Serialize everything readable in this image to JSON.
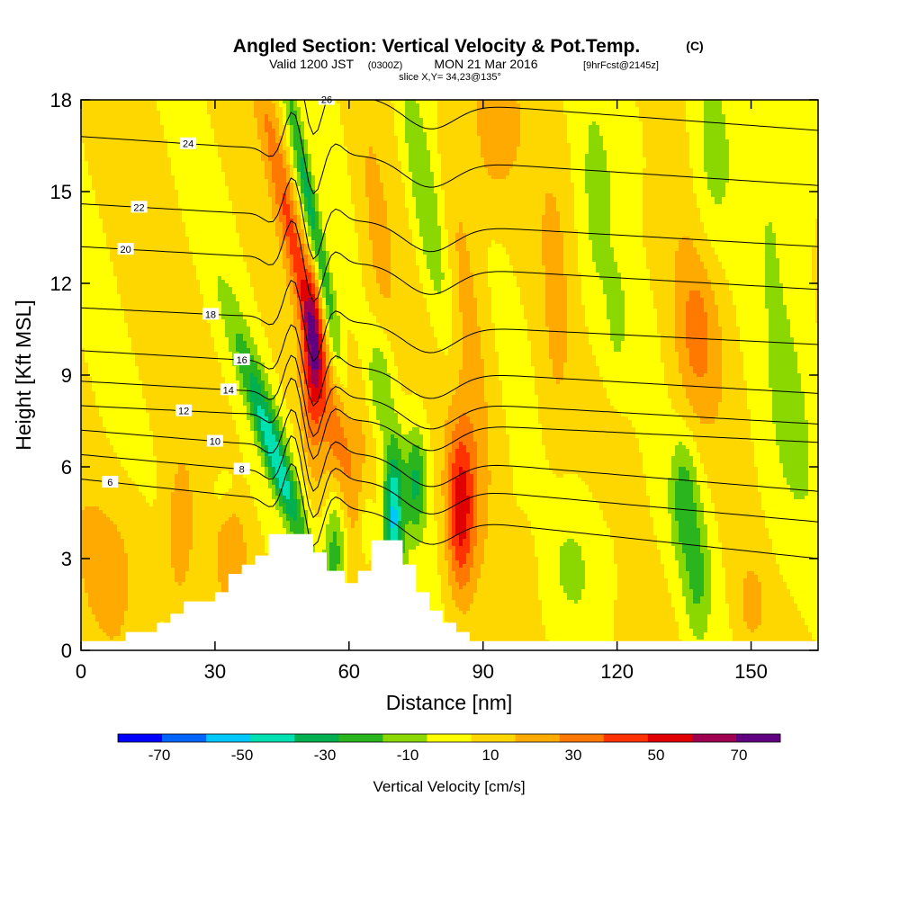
{
  "header": {
    "title": "Angled Section: Vertical Velocity & Pot.Temp.",
    "title_unit": "(C)",
    "subtitle_a": "Valid 1200 JST",
    "subtitle_b": "(0300Z)",
    "subtitle_c": "MON 21 Mar 2016",
    "subtitle_d": "[9hrFcst@2145z]",
    "slice": "slice X,Y= 34,23@135°"
  },
  "chart_data": {
    "type": "heatmap",
    "title": "Angled Section: Vertical Velocity & Pot.Temp.",
    "xlabel": "Distance [nm]",
    "ylabel": "Height [Kft MSL]",
    "xlim": [
      0,
      165
    ],
    "ylim": [
      0,
      18
    ],
    "x_ticks": [
      "0",
      "30",
      "60",
      "90",
      "120",
      "150"
    ],
    "x_tick_values": [
      0,
      30,
      60,
      90,
      120,
      150
    ],
    "y_ticks": [
      "0",
      "3",
      "6",
      "9",
      "12",
      "15",
      "18"
    ],
    "y_tick_values": [
      0,
      3,
      6,
      9,
      12,
      15,
      18
    ],
    "grid": false,
    "colorbar": {
      "title": "Vertical Velocity [cm/s]",
      "colors": [
        "#0000ff",
        "#0064ff",
        "#00c8ff",
        "#00e0b0",
        "#00b050",
        "#2ab41e",
        "#8ad800",
        "#ffff00",
        "#ffd700",
        "#ffaa00",
        "#ff7800",
        "#ff3200",
        "#e00000",
        "#a00050",
        "#600080"
      ],
      "bounds": [
        -80,
        -70,
        -60,
        -50,
        -40,
        -30,
        -20,
        -10,
        0,
        10,
        20,
        30,
        40,
        50,
        60,
        70,
        80
      ],
      "labels": [
        "-70",
        "-50",
        "-30",
        "-10",
        "10",
        "30",
        "50",
        "70"
      ],
      "label_values": [
        -70,
        -50,
        -30,
        -10,
        10,
        30,
        50,
        70
      ]
    },
    "background_w": 2,
    "w_features": [
      {
        "x": 8,
        "z": 3,
        "sx": 9,
        "sz": 2.5,
        "w": 9
      },
      {
        "x": 22,
        "z": 3.6,
        "sx": 3,
        "sz": 2.4,
        "w": 16
      },
      {
        "x": 34,
        "z": 3.2,
        "sx": 3,
        "sz": 2,
        "w": 13
      },
      {
        "x": 32,
        "z": 5.2,
        "sx": 4,
        "sz": 1.0,
        "w": -10
      },
      {
        "x": 40,
        "z": 8.5,
        "sx": 3.2,
        "sz": 3.8,
        "w": -18,
        "tilt": -2.4
      },
      {
        "x": 44,
        "z": 6.0,
        "sx": 2.5,
        "sz": 2.8,
        "w": -38,
        "tilt": -2.2
      },
      {
        "x": 48,
        "z": 13,
        "sx": 2.2,
        "sz": 5.5,
        "w": 28,
        "tilt": -1.4
      },
      {
        "x": 52,
        "z": 9.8,
        "sx": 2.3,
        "sz": 2.8,
        "w": 42
      },
      {
        "x": 52,
        "z": 14,
        "sx": 1.8,
        "sz": 5,
        "w": -38,
        "tilt": -1.3
      },
      {
        "x": 57,
        "z": 3.5,
        "sx": 2.6,
        "sz": 2.2,
        "w": -30
      },
      {
        "x": 60,
        "z": 6.5,
        "sx": 6,
        "sz": 2.5,
        "w": 16
      },
      {
        "x": 64,
        "z": 4.0,
        "sx": 2,
        "sz": 1.6,
        "w": -14
      },
      {
        "x": 70,
        "z": 4.3,
        "sx": 2.3,
        "sz": 2.6,
        "w": -52
      },
      {
        "x": 75,
        "z": 5.5,
        "sx": 2.4,
        "sz": 1.8,
        "w": -30
      },
      {
        "x": 67,
        "z": 8.8,
        "sx": 3,
        "sz": 1.8,
        "w": -20
      },
      {
        "x": 67,
        "z": 12.5,
        "sx": 3.5,
        "sz": 4.5,
        "w": 13,
        "tilt": -0.8
      },
      {
        "x": 78,
        "z": 14,
        "sx": 4,
        "sz": 5.5,
        "w": -25,
        "tilt": -1.2
      },
      {
        "x": 86,
        "z": 11,
        "sx": 4.5,
        "sz": 6,
        "w": 16,
        "tilt": -0.6
      },
      {
        "x": 85,
        "z": 4.5,
        "sx": 3.2,
        "sz": 2.8,
        "w": 42
      },
      {
        "x": 92,
        "z": 17,
        "sx": 5,
        "sz": 2.5,
        "w": 14
      },
      {
        "x": 110,
        "z": 3.0,
        "sx": 14,
        "sz": 2.6,
        "w": -10
      },
      {
        "x": 100,
        "z": 2.5,
        "sx": 3,
        "sz": 2,
        "w": 11
      },
      {
        "x": 106,
        "z": 10,
        "sx": 3.5,
        "sz": 7,
        "w": 7
      },
      {
        "x": 115,
        "z": 14,
        "sx": 4,
        "sz": 5,
        "w": -11
      },
      {
        "x": 120,
        "z": 10.5,
        "sx": 3,
        "sz": 2.5,
        "w": -10
      },
      {
        "x": 123,
        "z": 16.5,
        "sx": 4,
        "sz": 2,
        "w": -10
      },
      {
        "x": 135,
        "z": 5.0,
        "sx": 3,
        "sz": 2,
        "w": -25
      },
      {
        "x": 138,
        "z": 2.4,
        "sx": 3,
        "sz": 2.2,
        "w": -20
      },
      {
        "x": 138,
        "z": 10.4,
        "sx": 5,
        "sz": 3,
        "w": 20
      },
      {
        "x": 141,
        "z": 15.5,
        "sx": 4.5,
        "sz": 4,
        "w": -12
      },
      {
        "x": 150,
        "z": 1.5,
        "sx": 3.5,
        "sz": 1.5,
        "w": 11
      },
      {
        "x": 158,
        "z": 7,
        "sx": 9,
        "sz": 6,
        "w": -10
      },
      {
        "x": 158,
        "z": 16,
        "sx": 9,
        "sz": 4,
        "w": -12
      }
    ],
    "isentropes": [
      {
        "label": "6",
        "z_left": 5.6,
        "z_right": 3.0,
        "label_x": 6.5
      },
      {
        "label": "8",
        "z_left": 6.4,
        "z_right": 4.2,
        "label_x": 36
      },
      {
        "label": "10",
        "z_left": 7.2,
        "z_right": 5.2,
        "label_x": 30
      },
      {
        "label": "12",
        "z_left": 8.0,
        "z_right": 6.8,
        "label_x": 23
      },
      {
        "label": "14",
        "z_left": 8.8,
        "z_right": 7.4,
        "label_x": 33
      },
      {
        "label": "16",
        "z_left": 9.8,
        "z_right": 8.4,
        "label_x": 36
      },
      {
        "label": "18",
        "z_left": 11.2,
        "z_right": 10.0,
        "label_x": 29
      },
      {
        "label": "20",
        "z_left": 13.2,
        "z_right": 11.8,
        "label_x": 10
      },
      {
        "label": "22",
        "z_left": 14.6,
        "z_right": 13.2,
        "label_x": 13
      },
      {
        "label": "24",
        "z_left": 16.8,
        "z_right": 15.2,
        "label_x": 24
      },
      {
        "label": "26",
        "z_left": 18.8,
        "z_right": 17.0,
        "label_x": 55
      }
    ],
    "terrain": {
      "x": [
        0,
        10,
        10,
        17,
        17,
        20,
        20,
        23,
        23,
        30,
        30,
        33,
        33,
        36,
        36,
        39,
        39,
        42,
        42,
        52,
        52,
        55,
        55,
        59,
        59,
        62,
        62,
        65,
        65,
        72,
        72,
        75,
        75,
        78,
        78,
        81,
        81,
        84,
        84,
        87,
        87,
        165
      ],
      "z": [
        0.3,
        0.3,
        0.6,
        0.6,
        0.9,
        0.9,
        1.2,
        1.2,
        1.6,
        1.6,
        1.9,
        1.9,
        2.5,
        2.5,
        2.8,
        2.8,
        3.1,
        3.1,
        3.8,
        3.8,
        3.2,
        3.2,
        2.6,
        2.6,
        2.2,
        2.2,
        2.6,
        2.6,
        3.6,
        3.6,
        2.8,
        2.8,
        1.9,
        1.9,
        1.3,
        1.3,
        0.9,
        0.9,
        0.6,
        0.6,
        0.3,
        0.3
      ]
    }
  }
}
